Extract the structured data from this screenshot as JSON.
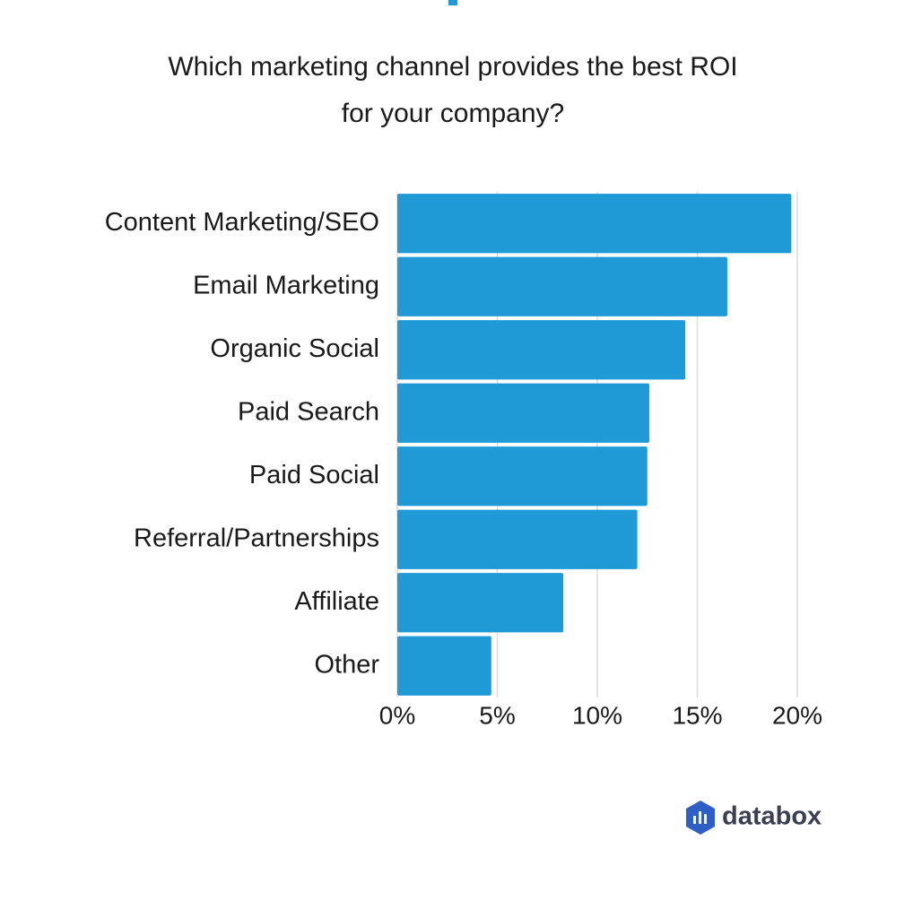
{
  "chart_data": {
    "type": "hbar",
    "title": [
      "Which marketing channel provides the best ROI",
      "for your company?"
    ],
    "categories": [
      "Content Marketing/SEO",
      "Email Marketing",
      "Organic Social",
      "Paid Search",
      "Paid Social",
      "Referral/Partnerships",
      "Affiliate",
      "Other"
    ],
    "values": [
      19.7,
      16.5,
      14.4,
      12.6,
      12.5,
      12.0,
      8.3,
      4.7
    ],
    "color": "#1f9ad6",
    "xlim": [
      0,
      20
    ],
    "xticks": [
      {
        "value": 0,
        "label": "0%"
      },
      {
        "value": 5,
        "label": "5%"
      },
      {
        "value": 10,
        "label": "10%"
      },
      {
        "value": 15,
        "label": "15%"
      },
      {
        "value": 20,
        "label": "20%"
      }
    ],
    "grid": true
  },
  "footer": {
    "logo_text": "databox"
  }
}
